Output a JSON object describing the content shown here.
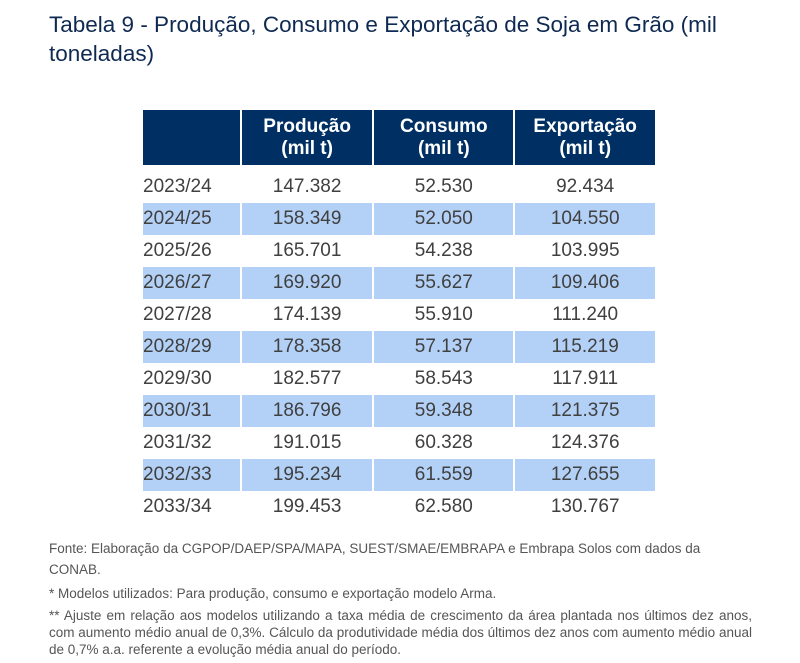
{
  "title": "Tabela 9 - Produção, Consumo e Exportação de Soja em Grão (mil toneladas)",
  "table": {
    "headers": [
      "",
      "Produção (mil t)",
      "Consumo (mil t)",
      "Exportação (mil t)"
    ],
    "header_lines": [
      [
        "",
        ""
      ],
      [
        "Produção",
        "(mil t)"
      ],
      [
        "Consumo",
        "(mil t)"
      ],
      [
        "Exportação",
        "(mil t)"
      ]
    ],
    "rows": [
      [
        "2023/24",
        "147.382",
        "52.530",
        "92.434"
      ],
      [
        "2024/25",
        "158.349",
        "52.050",
        "104.550"
      ],
      [
        "2025/26",
        "165.701",
        "54.238",
        "103.995"
      ],
      [
        "2026/27",
        "169.920",
        "55.627",
        "109.406"
      ],
      [
        "2027/28",
        "174.139",
        "55.910",
        "111.240"
      ],
      [
        "2028/29",
        "178.358",
        "57.137",
        "115.219"
      ],
      [
        "2029/30",
        "182.577",
        "58.543",
        "117.911"
      ],
      [
        "2030/31",
        "186.796",
        "59.348",
        "121.375"
      ],
      [
        "2031/32",
        "191.015",
        "60.328",
        "124.376"
      ],
      [
        "2032/33",
        "195.234",
        "61.559",
        "127.655"
      ],
      [
        "2033/34",
        "199.453",
        "62.580",
        "130.767"
      ]
    ]
  },
  "colors": {
    "header_bg": "#002f63",
    "shade_row": "#b3d1f7",
    "title": "#0f2a52"
  },
  "notes": {
    "source": "Fonte: Elaboração da CGPOP/DAEP/SPA/MAPA, SUEST/SMAE/EMBRAPA e Embrapa Solos com dados da CONAB.",
    "models": "* Modelos utilizados: Para produção, consumo e exportação modelo Arma.",
    "adjustment": "** Ajuste em relação aos modelos utilizando a taxa média de crescimento da área plantada nos últimos dez anos, com aumento médio anual de 0,3%. Cálculo da produtividade média dos últimos dez anos com aumento médio anual de 0,7% a.a. referente a evolução média anual do período."
  }
}
